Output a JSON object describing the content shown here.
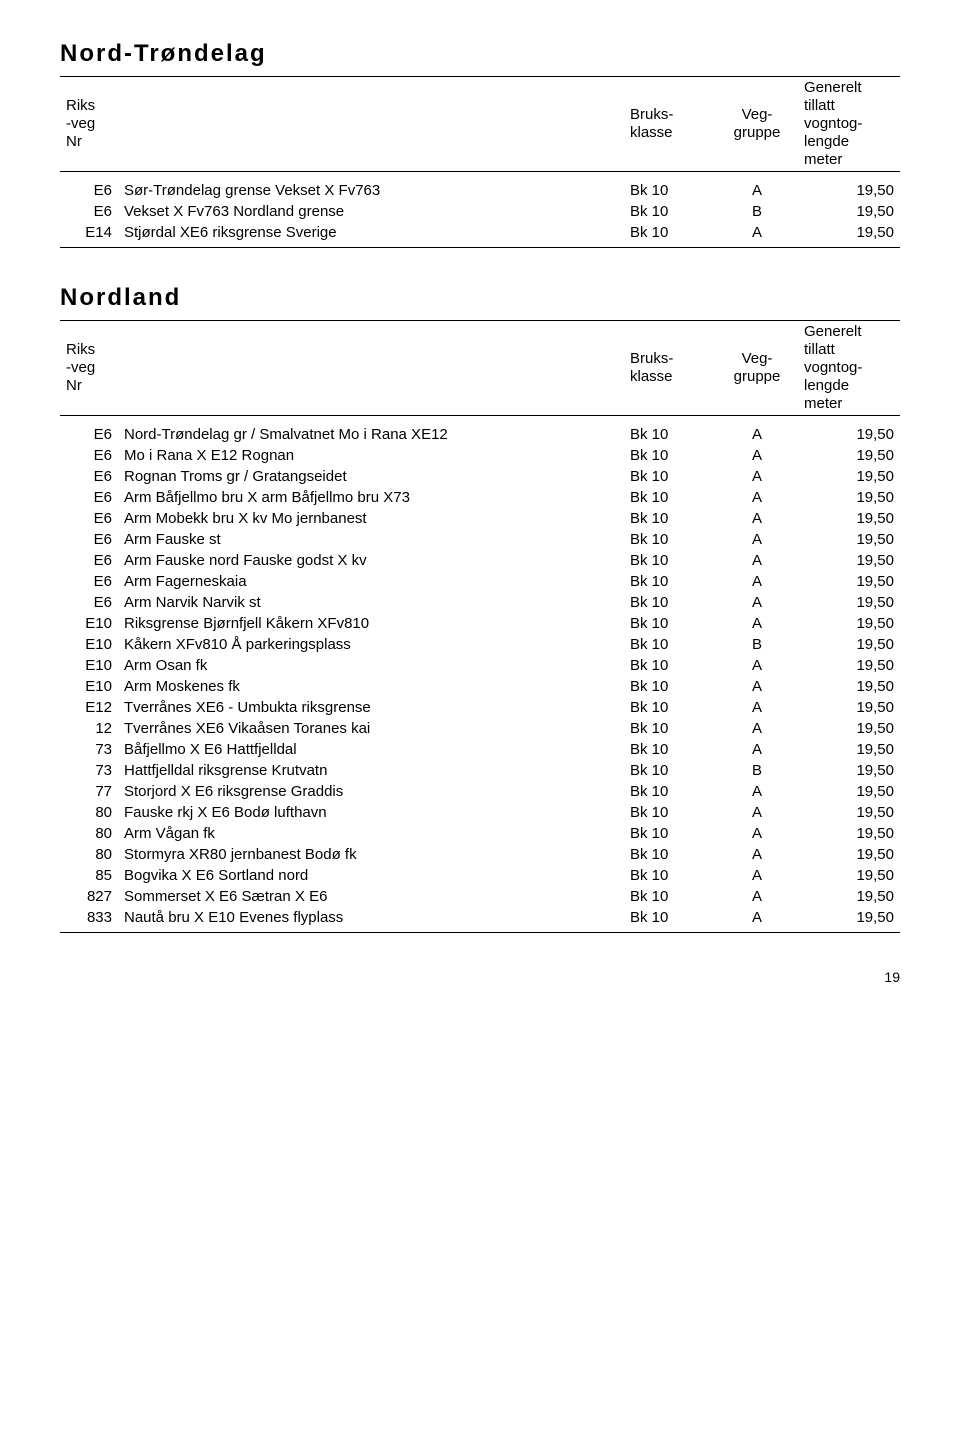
{
  "headers": {
    "nr": "Riks\n-veg\nNr",
    "desc": "",
    "bk": "Bruks-\nklasse",
    "vg": "Veg-\ngruppe",
    "len": "Generelt\ntillatt\nvogntog-\nlengde\nmeter"
  },
  "sections": [
    {
      "title": "Nord-Trøndelag",
      "rows": [
        {
          "nr": "E6",
          "desc": "Sør-Trøndelag grense Vekset X Fv763",
          "bk": "Bk 10",
          "vg": "A",
          "len": "19,50"
        },
        {
          "nr": "E6",
          "desc": "Vekset X Fv763 Nordland grense",
          "bk": "Bk 10",
          "vg": "B",
          "len": "19,50"
        },
        {
          "nr": "E14",
          "desc": "Stjørdal XE6 riksgrense Sverige",
          "bk": "Bk 10",
          "vg": "A",
          "len": "19,50"
        }
      ]
    },
    {
      "title": "Nordland",
      "rows": [
        {
          "nr": "E6",
          "desc": "Nord-Trøndelag gr / Smalvatnet Mo i Rana XE12",
          "bk": "Bk 10",
          "vg": "A",
          "len": "19,50"
        },
        {
          "nr": "E6",
          "desc": "Mo i Rana X E12 Rognan",
          "bk": "Bk 10",
          "vg": "A",
          "len": "19,50"
        },
        {
          "nr": "E6",
          "desc": "Rognan Troms gr / Gratangseidet",
          "bk": "Bk 10",
          "vg": "A",
          "len": "19,50"
        },
        {
          "nr": "E6",
          "desc": "Arm Båfjellmo bru X arm Båfjellmo bru X73",
          "bk": "Bk 10",
          "vg": "A",
          "len": "19,50"
        },
        {
          "nr": "E6",
          "desc": "Arm Mobekk bru X kv Mo jernbanest",
          "bk": "Bk 10",
          "vg": "A",
          "len": "19,50"
        },
        {
          "nr": "E6",
          "desc": "Arm  Fauske st",
          "bk": "Bk 10",
          "vg": "A",
          "len": "19,50"
        },
        {
          "nr": "E6",
          "desc": "Arm Fauske nord Fauske godst X kv",
          "bk": "Bk 10",
          "vg": "A",
          "len": "19,50"
        },
        {
          "nr": "E6",
          "desc": "Arm Fagerneskaia",
          "bk": "Bk 10",
          "vg": "A",
          "len": "19,50"
        },
        {
          "nr": "E6",
          "desc": "Arm Narvik Narvik st",
          "bk": "Bk 10",
          "vg": "A",
          "len": "19,50"
        },
        {
          "nr": "E10",
          "desc": "Riksgrense Bjørnfjell Kåkern XFv810",
          "bk": "Bk 10",
          "vg": "A",
          "len": "19,50"
        },
        {
          "nr": "E10",
          "desc": "Kåkern XFv810 Å parkeringsplass",
          "bk": "Bk 10",
          "vg": "B",
          "len": "19,50"
        },
        {
          "nr": "E10",
          "desc": "Arm  Osan fk",
          "bk": "Bk 10",
          "vg": "A",
          "len": "19,50"
        },
        {
          "nr": "E10",
          "desc": "Arm Moskenes fk",
          "bk": "Bk 10",
          "vg": "A",
          "len": "19,50"
        },
        {
          "nr": "E12",
          "desc": "Tverrånes XE6 - Umbukta riksgrense",
          "bk": "Bk 10",
          "vg": "A",
          "len": "19,50"
        },
        {
          "nr": "12",
          "desc": "Tverrånes XE6 Vikaåsen Toranes kai",
          "bk": "Bk 10",
          "vg": "A",
          "len": "19,50"
        },
        {
          "nr": "73",
          "desc": "Båfjellmo X E6 Hattfjelldal",
          "bk": "Bk 10",
          "vg": "A",
          "len": "19,50"
        },
        {
          "nr": "73",
          "desc": "Hattfjelldal riksgrense Krutvatn",
          "bk": "Bk 10",
          "vg": "B",
          "len": "19,50"
        },
        {
          "nr": "77",
          "desc": "Storjord X E6 riksgrense Graddis",
          "bk": "Bk 10",
          "vg": "A",
          "len": "19,50"
        },
        {
          "nr": "80",
          "desc": "Fauske rkj X E6 Bodø lufthavn",
          "bk": "Bk 10",
          "vg": "A",
          "len": "19,50"
        },
        {
          "nr": "80",
          "desc": "Arm Vågan fk",
          "bk": "Bk 10",
          "vg": "A",
          "len": "19,50"
        },
        {
          "nr": "80",
          "desc": "Stormyra XR80 jernbanest Bodø fk",
          "bk": "Bk 10",
          "vg": "A",
          "len": "19,50"
        },
        {
          "nr": "85",
          "desc": "Bogvika X E6 Sortland nord",
          "bk": "Bk 10",
          "vg": "A",
          "len": "19,50"
        },
        {
          "nr": "827",
          "desc": "Sommerset X E6 Sætran X E6",
          "bk": "Bk 10",
          "vg": "A",
          "len": "19,50"
        },
        {
          "nr": "833",
          "desc": "Nautå bru X E10 Evenes flyplass",
          "bk": "Bk 10",
          "vg": "A",
          "len": "19,50"
        }
      ]
    }
  ],
  "page_number": "19",
  "style": {
    "font_family": "Arial, Helvetica, sans-serif",
    "title_fontsize": 24,
    "body_fontsize": 15,
    "text_color": "#000000",
    "background_color": "#ffffff",
    "border_color": "#000000"
  }
}
